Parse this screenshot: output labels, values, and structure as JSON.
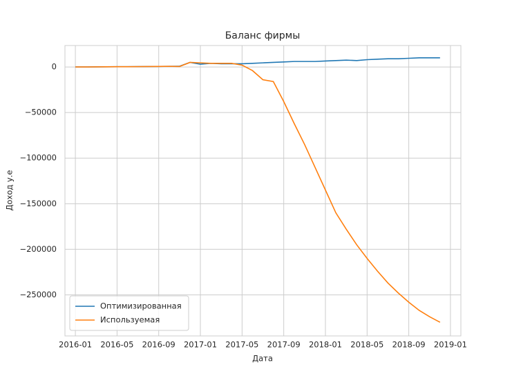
{
  "chart_data": {
    "type": "line",
    "title": "Баланс фирмы",
    "x_label": "Дата",
    "y_label": "Доход у.е",
    "x": [
      "2016-01",
      "2016-02",
      "2016-03",
      "2016-04",
      "2016-05",
      "2016-06",
      "2016-07",
      "2016-08",
      "2016-09",
      "2016-10",
      "2016-11",
      "2016-12",
      "2017-01",
      "2017-02",
      "2017-03",
      "2017-04",
      "2017-05",
      "2017-06",
      "2017-07",
      "2017-08",
      "2017-09",
      "2017-10",
      "2017-11",
      "2017-12",
      "2018-01",
      "2018-02",
      "2018-03",
      "2018-04",
      "2018-05",
      "2018-06",
      "2018-07",
      "2018-08",
      "2018-09",
      "2018-10",
      "2018-11",
      "2018-12"
    ],
    "series": [
      {
        "name": "Оптимизированная",
        "color": "#1f77b4",
        "values": [
          0,
          0,
          100,
          200,
          300,
          300,
          400,
          500,
          600,
          700,
          800,
          5000,
          3000,
          4000,
          3500,
          3500,
          3500,
          4000,
          4500,
          5000,
          5500,
          6000,
          6000,
          6000,
          6500,
          7000,
          7500,
          7000,
          8000,
          8500,
          9000,
          9000,
          9500,
          10000,
          10000,
          10000
        ]
      },
      {
        "name": "Используемая",
        "color": "#ff7f0e",
        "values": [
          0,
          0,
          100,
          200,
          300,
          300,
          400,
          500,
          600,
          700,
          500,
          5000,
          4500,
          4000,
          4000,
          4000,
          2000,
          -4000,
          -14000,
          -16000,
          -38000,
          -62000,
          -85000,
          -110000,
          -135000,
          -160000,
          -178000,
          -195000,
          -210000,
          -224000,
          -237000,
          -248000,
          -258000,
          -267000,
          -274000,
          -280000
        ]
      }
    ],
    "xlim": [
      "2015-12",
      "2019-02"
    ],
    "xticks": [
      "2016-01",
      "2016-05",
      "2016-09",
      "2017-01",
      "2017-05",
      "2017-09",
      "2018-01",
      "2018-05",
      "2018-09",
      "2019-01"
    ],
    "ylim": [
      -295000,
      23500
    ],
    "yticks": [
      {
        "value": -250000,
        "label": "−250000"
      },
      {
        "value": -200000,
        "label": "−200000"
      },
      {
        "value": -150000,
        "label": "−150000"
      },
      {
        "value": -100000,
        "label": "−100000"
      },
      {
        "value": -50000,
        "label": "−50000"
      },
      0
    ],
    "grid": true,
    "legend": "lower left"
  }
}
